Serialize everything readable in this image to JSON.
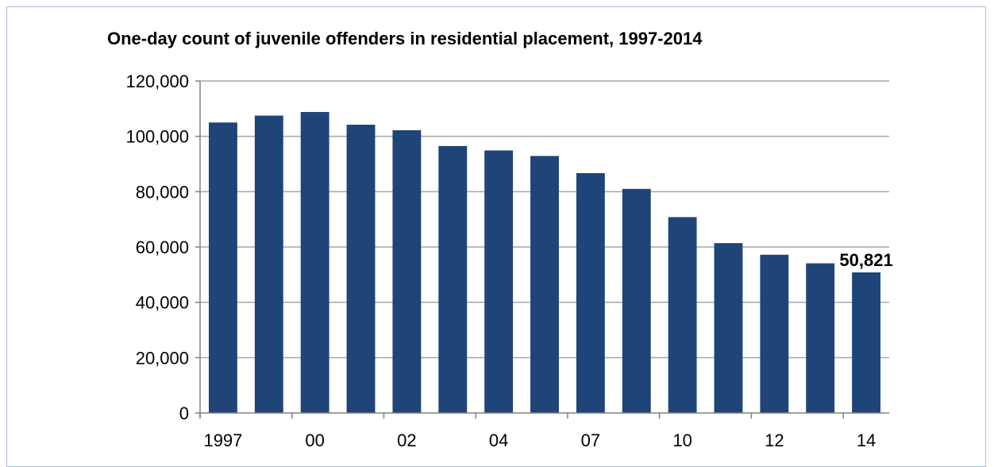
{
  "chart_data": {
    "type": "bar",
    "title": "One-day count of juvenile offenders in residential placement, 1997-2014",
    "xlabel": "",
    "ylabel": "",
    "categories": [
      "1997",
      "",
      "00",
      "",
      "02",
      "",
      "04",
      "",
      "07",
      "",
      "10",
      "",
      "12",
      "",
      "14"
    ],
    "values": [
      105000,
      107500,
      108800,
      104200,
      102200,
      96500,
      94900,
      92900,
      86700,
      81000,
      70800,
      61400,
      57200,
      54100,
      50821
    ],
    "ylim": [
      0,
      120000
    ],
    "yticks": [
      "0",
      "20,000",
      "40,000",
      "60,000",
      "80,000",
      "100,000",
      "120,000"
    ],
    "ytick_values": [
      0,
      20000,
      40000,
      60000,
      80000,
      100000,
      120000
    ],
    "data_labels": [
      {
        "index": 14,
        "text": "50,821"
      }
    ],
    "bar_color": "#1f4478",
    "grid": true,
    "legend": "none"
  }
}
